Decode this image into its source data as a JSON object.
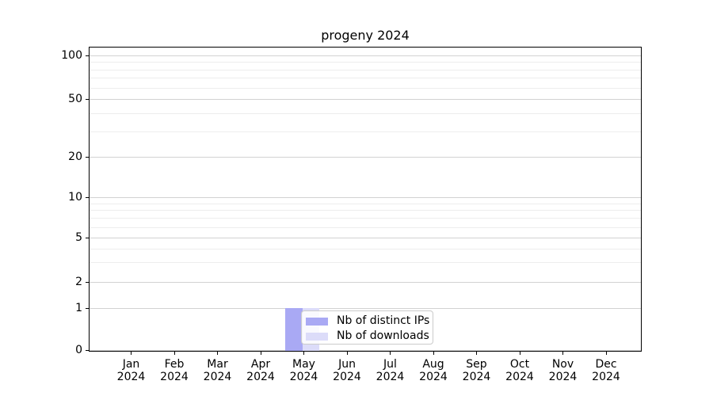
{
  "title": "progeny 2024",
  "chart_data": {
    "type": "bar",
    "title": "progeny 2024",
    "categories": [
      "Jan 2024",
      "Feb 2024",
      "Mar 2024",
      "Apr 2024",
      "May 2024",
      "Jun 2024",
      "Jul 2024",
      "Aug 2024",
      "Sep 2024",
      "Oct 2024",
      "Nov 2024",
      "Dec 2024"
    ],
    "series": [
      {
        "name": "Nb of distinct IPs",
        "color": "#a9a9f4",
        "values": [
          0,
          0,
          0,
          0,
          1,
          0,
          0,
          0,
          0,
          0,
          0,
          0
        ]
      },
      {
        "name": "Nb of downloads",
        "color": "#dcdcf9",
        "values": [
          0,
          0,
          0,
          0,
          1,
          0,
          0,
          0,
          0,
          0,
          0,
          0
        ]
      }
    ],
    "xlabel": "",
    "ylabel": "",
    "yscale": "log-1-2-5 with linear segment below 1",
    "ylim": [
      0,
      115
    ],
    "y_major_ticks": [
      0,
      1,
      2,
      5,
      10,
      20,
      50,
      100
    ],
    "y_minor_ticks": [
      3,
      4,
      6,
      7,
      8,
      9,
      30,
      40,
      60,
      70,
      80,
      90
    ],
    "grid": "horizontal major and minor gridlines",
    "legend_position": "lower center inside axes"
  },
  "legend": {
    "items": [
      {
        "label": "Nb of distinct IPs",
        "color": "#a9a9f4"
      },
      {
        "label": "Nb of downloads",
        "color": "#dcdcf9"
      }
    ]
  },
  "colors": {
    "background": "#ffffff",
    "axis": "#000000",
    "major_grid": "#d2d2d2",
    "minor_grid": "#ededed",
    "legend_border": "#cbcbcb"
  }
}
